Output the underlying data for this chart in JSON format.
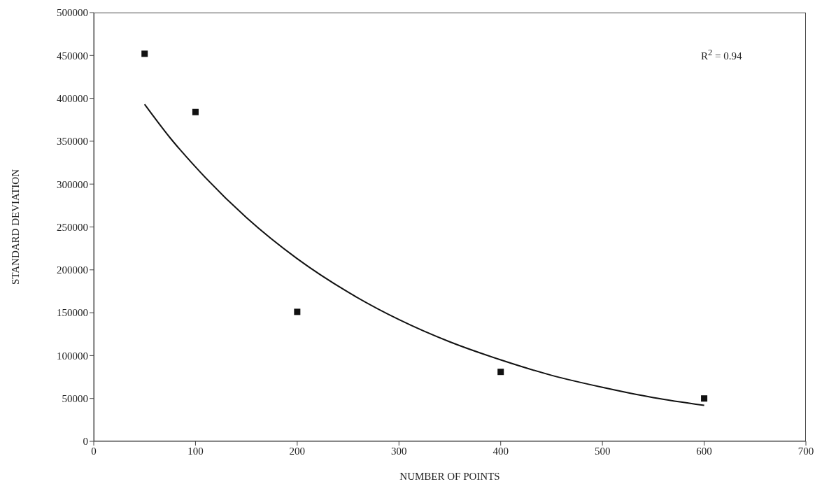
{
  "chart_data": {
    "type": "scatter",
    "xlabel": "NUMBER OF POINTS",
    "ylabel": "STANDARD DEVIATION",
    "xlim": [
      0,
      700
    ],
    "xticks": [
      0,
      100,
      200,
      300,
      400,
      500,
      600,
      700
    ],
    "ylim": [
      0,
      500000
    ],
    "yticks": [
      0,
      50000,
      100000,
      150000,
      200000,
      250000,
      300000,
      350000,
      400000,
      450000,
      500000
    ],
    "grid": false,
    "legend": false,
    "marker": "square",
    "annotations": [
      "R$^{2}$ = 0.94"
    ],
    "series": [
      {
        "color": "#111111",
        "x": [
          50,
          100,
          200,
          400,
          600
        ],
        "values": [
          452000,
          384000,
          151000,
          81000,
          50000
        ]
      },
      {
        "type": "line",
        "color": "#111111",
        "marker": "none",
        "line_style": "solid",
        "x": [
          50,
          75,
          100,
          150,
          200,
          250,
          300,
          350,
          400,
          450,
          500,
          550,
          600
        ],
        "values": [
          393000,
          354000,
          320000,
          261000,
          213000,
          174000,
          142000,
          116000,
          95000,
          77000,
          63000,
          51000,
          42000
        ]
      }
    ]
  }
}
